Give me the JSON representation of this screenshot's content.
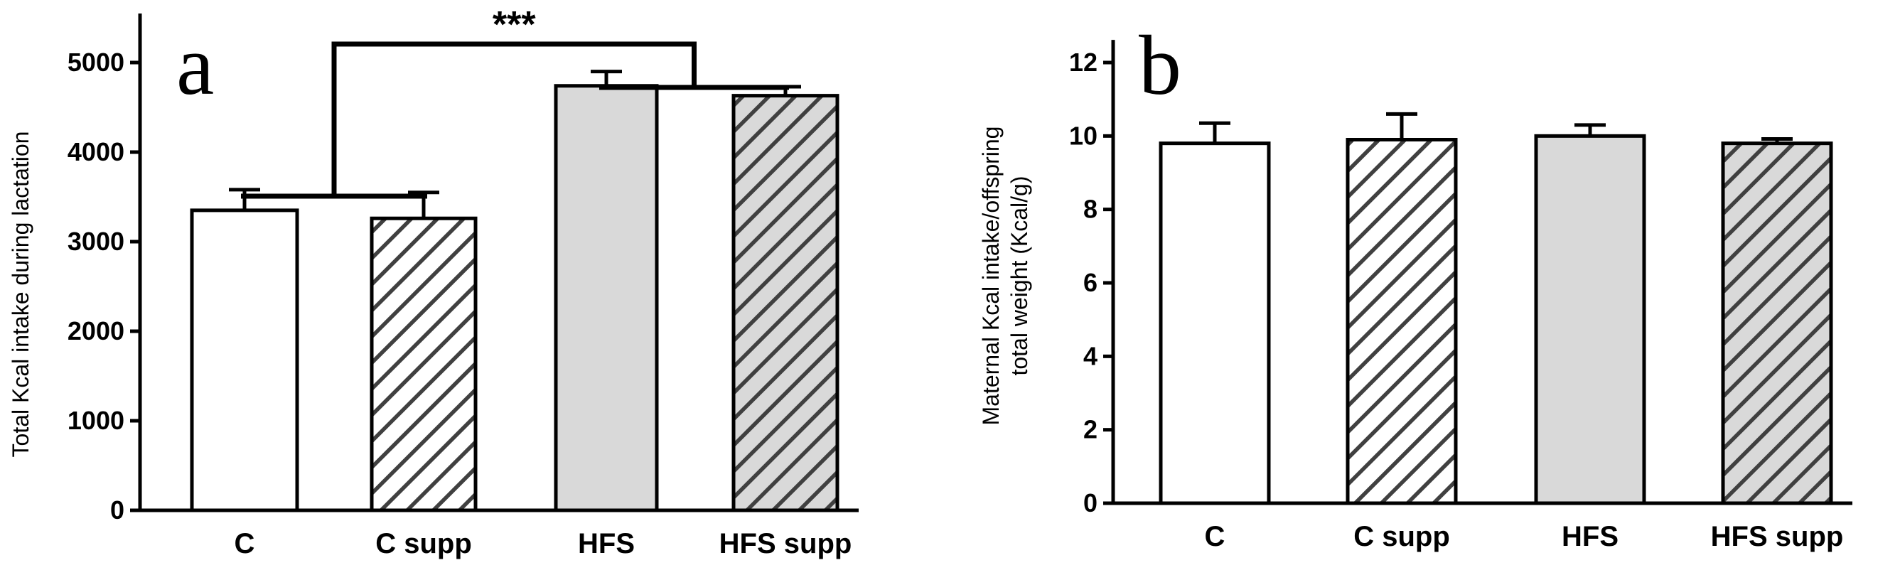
{
  "chart_data": [
    {
      "type": "bar",
      "panel_label": "a",
      "ylabel": "Total Kcal intake during lactation",
      "categories": [
        "C",
        "C supp",
        "HFS",
        "HFS supp"
      ],
      "values": [
        3350,
        3260,
        4740,
        4630
      ],
      "errors": [
        230,
        290,
        160,
        100
      ],
      "fills": [
        "#ffffff",
        "hatch",
        "#d9d9d9",
        "hatch-gray"
      ],
      "ylim": [
        0,
        5500
      ],
      "yticks": [
        0,
        1000,
        2000,
        3000,
        4000,
        5000
      ],
      "significance": "***"
    },
    {
      "type": "bar",
      "panel_label": "b",
      "ylabel": [
        "Maternal Kcal intake/offspring",
        "total weight  (Kcal/g)"
      ],
      "categories": [
        "C",
        "C supp",
        "HFS",
        "HFS supp"
      ],
      "values": [
        9.8,
        9.9,
        10.0,
        9.8
      ],
      "errors": [
        0.55,
        0.7,
        0.3,
        0.12
      ],
      "fills": [
        "#ffffff",
        "hatch",
        "#d9d9d9",
        "hatch-gray"
      ],
      "ylim": [
        0,
        12.5
      ],
      "yticks": [
        0,
        2,
        4,
        6,
        8,
        10,
        12
      ]
    }
  ]
}
